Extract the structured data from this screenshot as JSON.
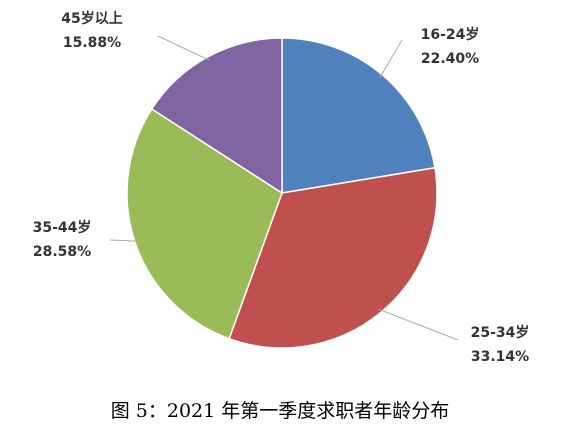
{
  "chart_data": {
    "type": "pie",
    "title": "图 5：2021 年第一季度求职者年龄分布",
    "categories": [
      "16-24岁",
      "25-34岁",
      "35-44岁",
      "45岁以上"
    ],
    "values": [
      22.4,
      33.14,
      28.58,
      15.88
    ],
    "value_labels": [
      "22.40%",
      "33.14%",
      "28.58%",
      "15.88%"
    ],
    "colors": [
      "#4f81bd",
      "#c0504d",
      "#9bbb59",
      "#8064a2"
    ]
  }
}
